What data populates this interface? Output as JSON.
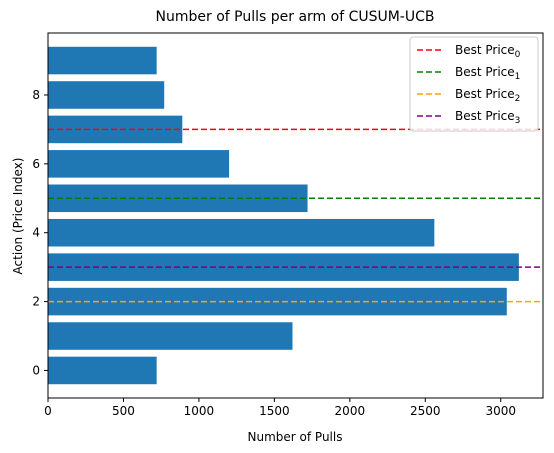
{
  "chart_data": {
    "type": "bar",
    "orientation": "horizontal",
    "title": "Number of Pulls per arm of CUSUM-UCB",
    "xlabel": "Number of Pulls",
    "ylabel": "Action (Price Index)",
    "categories": [
      0,
      1,
      2,
      3,
      4,
      5,
      6,
      7,
      8,
      9
    ],
    "values": [
      720,
      1620,
      3040,
      3120,
      2560,
      1720,
      1200,
      890,
      770,
      720
    ],
    "bar_color": "#1f77b4",
    "xlim": [
      0,
      3280
    ],
    "ylim": [
      -0.8,
      9.8
    ],
    "xticks": [
      0,
      500,
      1000,
      1500,
      2000,
      2500,
      3000
    ],
    "yticks": [
      0,
      2,
      4,
      6,
      8
    ],
    "xtick_labels": [
      "0",
      "500",
      "1000",
      "1500",
      "2000",
      "2500",
      "3000"
    ],
    "ytick_labels": [
      "0",
      "2",
      "4",
      "6",
      "8"
    ],
    "grid": false,
    "legend_placement": "top-right",
    "hlines": [
      {
        "base": "Best Price",
        "sub": "0",
        "y": 7,
        "color": "#ff0000",
        "style": "dashed"
      },
      {
        "base": "Best Price",
        "sub": "1",
        "y": 5,
        "color": "#008000",
        "style": "dashed"
      },
      {
        "base": "Best Price",
        "sub": "2",
        "y": 2,
        "color": "#ffa500",
        "style": "dashed"
      },
      {
        "base": "Best Price",
        "sub": "3",
        "y": 3,
        "color": "#800080",
        "style": "dashed"
      }
    ]
  }
}
